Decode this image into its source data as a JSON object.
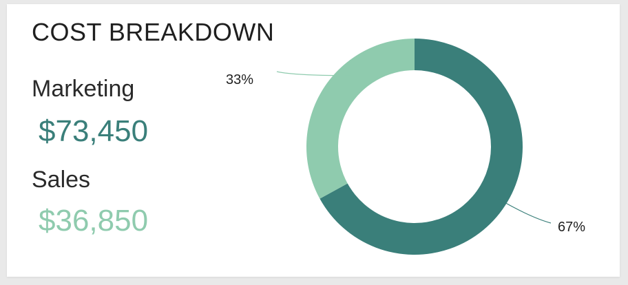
{
  "title": "COST BREAKDOWN",
  "metrics": [
    {
      "label": "Marketing",
      "value": "$73,450",
      "color": "#3a7f7a"
    },
    {
      "label": "Sales",
      "value": "$36,850",
      "color": "#8fcbae"
    }
  ],
  "chart_data": {
    "type": "pie",
    "donut": true,
    "title": "COST BREAKDOWN",
    "slices": [
      {
        "label": "Marketing",
        "value": 67,
        "pct_label": "67%",
        "color": "#3a7f7a"
      },
      {
        "label": "Sales",
        "value": 33,
        "pct_label": "33%",
        "color": "#8fcbae"
      }
    ],
    "legend": "none"
  }
}
